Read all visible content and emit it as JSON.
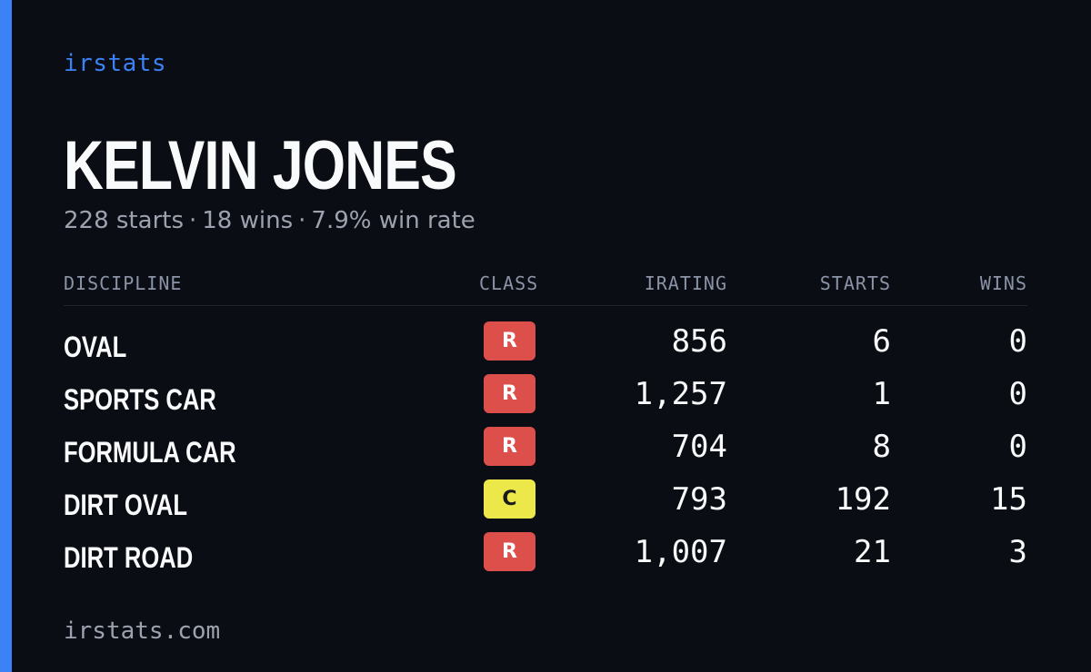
{
  "brand": "irstats",
  "driver": {
    "name": "KELVIN JONES"
  },
  "summary": {
    "starts": "228 starts",
    "wins": "18 wins",
    "win_rate": "7.9% win rate",
    "separator": "·"
  },
  "table": {
    "headers": {
      "discipline": "DISCIPLINE",
      "class": "CLASS",
      "irating": "IRATING",
      "starts": "STARTS",
      "wins": "WINS"
    },
    "rows": [
      {
        "discipline": "OVAL",
        "class": "R",
        "class_color": "#dc4f4a",
        "class_text_color": "#ffffff",
        "irating": "856",
        "starts": "6",
        "wins": "0"
      },
      {
        "discipline": "SPORTS CAR",
        "class": "R",
        "class_color": "#dc4f4a",
        "class_text_color": "#ffffff",
        "irating": "1,257",
        "starts": "1",
        "wins": "0"
      },
      {
        "discipline": "FORMULA CAR",
        "class": "R",
        "class_color": "#dc4f4a",
        "class_text_color": "#ffffff",
        "irating": "704",
        "starts": "8",
        "wins": "0"
      },
      {
        "discipline": "DIRT OVAL",
        "class": "C",
        "class_color": "#ede84a",
        "class_text_color": "#1a1a1a",
        "irating": "793",
        "starts": "192",
        "wins": "15"
      },
      {
        "discipline": "DIRT ROAD",
        "class": "R",
        "class_color": "#dc4f4a",
        "class_text_color": "#ffffff",
        "irating": "1,007",
        "starts": "21",
        "wins": "3"
      }
    ]
  },
  "footer": {
    "url": "irstats.com"
  },
  "colors": {
    "accent": "#3b82f6",
    "background": "#0b0d14"
  }
}
